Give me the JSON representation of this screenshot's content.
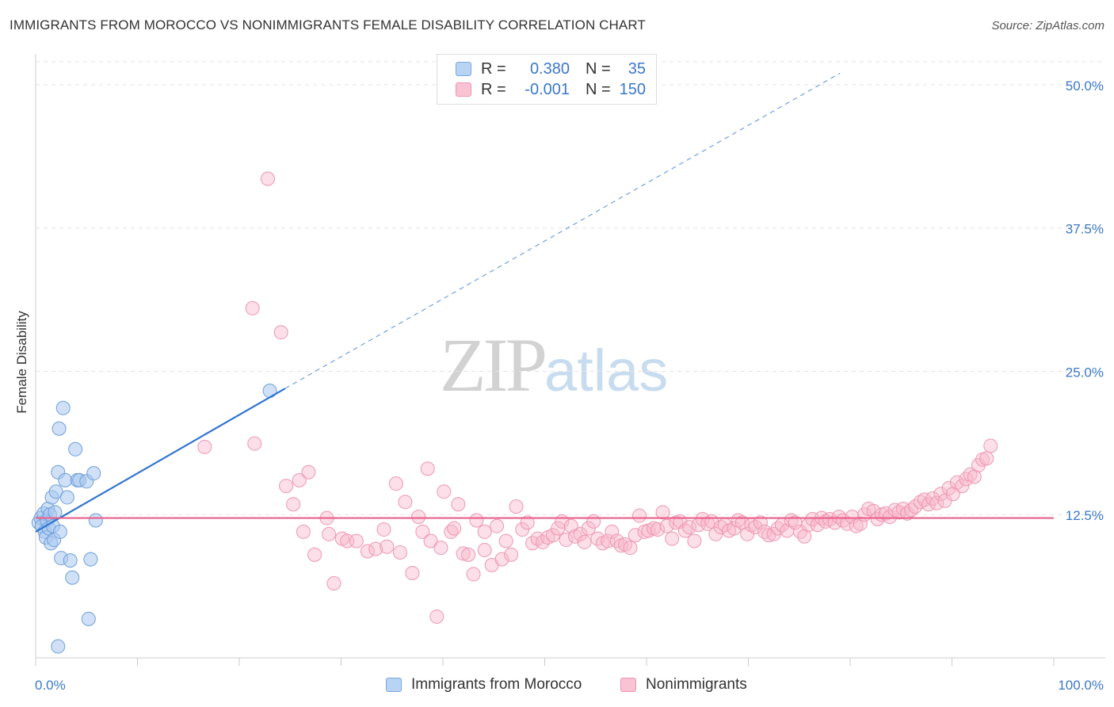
{
  "title": "IMMIGRANTS FROM MOROCCO VS NONIMMIGRANTS FEMALE DISABILITY CORRELATION CHART",
  "source": "Source: ZipAtlas.com",
  "watermark": {
    "zip": "ZIP",
    "atlas": "atlas"
  },
  "legend": {
    "r_label": "R =",
    "n_label": "N =",
    "rows": [
      {
        "r": "0.380",
        "n": "35",
        "fill": "#b8d4f5",
        "stroke": "#7aa6dc"
      },
      {
        "r": "-0.001",
        "n": "150",
        "fill": "#f9c3d4",
        "stroke": "#ef93b0"
      }
    ]
  },
  "bottom_legend": [
    {
      "label": "Immigrants from Morocco",
      "fill": "#b8d4f5",
      "stroke": "#7aa6dc"
    },
    {
      "label": "Nonimmigrants",
      "fill": "#f9c3d4",
      "stroke": "#ef93b0"
    }
  ],
  "chart_data": {
    "type": "scatter",
    "title": "IMMIGRANTS FROM MOROCCO VS NONIMMIGRANTS FEMALE DISABILITY CORRELATION CHART",
    "xlabel": "",
    "ylabel": "Female Disability",
    "xlim": [
      0,
      100
    ],
    "ylim": [
      0,
      52
    ],
    "x_tick_labels": [
      "0.0%",
      "100.0%"
    ],
    "y_ticks": [
      12.5,
      25.0,
      37.5,
      50.0
    ],
    "y_tick_labels": [
      "12.5%",
      "25.0%",
      "37.5%",
      "50.0%"
    ],
    "grid": "horizontal dashed",
    "legend_position": "top-center",
    "colors": {
      "immigrants": "#2f74d0",
      "nonimmigrants": "#e8608c",
      "axis_text": "#3a78c9"
    },
    "series": [
      {
        "name": "Immigrants from Morocco",
        "r": 0.38,
        "n": 35,
        "trend": {
          "x0": 0,
          "y0": 11.0,
          "x1": 24.5,
          "y1": 23.5,
          "dashed_to_x": 79,
          "dashed_to_y": 51
        },
        "points": [
          [
            0.3,
            11.8
          ],
          [
            0.5,
            12.2
          ],
          [
            0.6,
            11.5
          ],
          [
            0.8,
            12.6
          ],
          [
            0.9,
            11.0
          ],
          [
            1.0,
            10.5
          ],
          [
            1.1,
            12.0
          ],
          [
            1.2,
            13.0
          ],
          [
            1.3,
            11.3
          ],
          [
            1.4,
            12.5
          ],
          [
            1.5,
            10.0
          ],
          [
            1.6,
            14.0
          ],
          [
            1.7,
            11.5
          ],
          [
            1.8,
            10.3
          ],
          [
            1.9,
            12.7
          ],
          [
            2.0,
            14.5
          ],
          [
            2.2,
            16.2
          ],
          [
            2.3,
            20.0
          ],
          [
            2.4,
            11.0
          ],
          [
            2.5,
            8.7
          ],
          [
            2.7,
            21.8
          ],
          [
            2.9,
            15.5
          ],
          [
            3.1,
            14.0
          ],
          [
            3.4,
            8.5
          ],
          [
            3.6,
            7.0
          ],
          [
            3.9,
            18.2
          ],
          [
            4.1,
            15.5
          ],
          [
            4.3,
            15.5
          ],
          [
            5.0,
            15.4
          ],
          [
            5.2,
            3.4
          ],
          [
            5.4,
            8.6
          ],
          [
            5.7,
            16.1
          ],
          [
            5.9,
            12.0
          ],
          [
            2.2,
            1.0
          ],
          [
            23.0,
            23.3
          ]
        ]
      },
      {
        "name": "Nonimmigrants",
        "r": -0.001,
        "n": 150,
        "trend": {
          "x0": 0,
          "y0": 12.2,
          "x1": 100,
          "y1": 12.2
        },
        "points": [
          [
            22.8,
            41.8
          ],
          [
            21.3,
            30.5
          ],
          [
            24.1,
            28.4
          ],
          [
            16.6,
            18.4
          ],
          [
            21.5,
            18.7
          ],
          [
            24.6,
            15.0
          ],
          [
            25.9,
            15.5
          ],
          [
            26.8,
            16.2
          ],
          [
            25.3,
            13.4
          ],
          [
            26.3,
            11.0
          ],
          [
            27.4,
            9.0
          ],
          [
            28.6,
            12.2
          ],
          [
            28.8,
            10.8
          ],
          [
            29.3,
            6.5
          ],
          [
            30.1,
            10.4
          ],
          [
            30.6,
            10.2
          ],
          [
            31.5,
            10.2
          ],
          [
            32.6,
            9.3
          ],
          [
            33.4,
            9.5
          ],
          [
            34.2,
            11.2
          ],
          [
            34.5,
            9.7
          ],
          [
            35.4,
            15.2
          ],
          [
            35.8,
            9.2
          ],
          [
            36.3,
            13.6
          ],
          [
            37.0,
            7.4
          ],
          [
            37.6,
            12.3
          ],
          [
            38.0,
            11.0
          ],
          [
            38.5,
            16.5
          ],
          [
            38.8,
            10.2
          ],
          [
            39.4,
            3.6
          ],
          [
            39.8,
            9.6
          ],
          [
            40.1,
            14.5
          ],
          [
            40.8,
            11.0
          ],
          [
            41.1,
            11.3
          ],
          [
            41.5,
            13.4
          ],
          [
            42.0,
            9.1
          ],
          [
            42.5,
            9.0
          ],
          [
            43.0,
            7.3
          ],
          [
            43.3,
            12.0
          ],
          [
            44.1,
            11.0
          ],
          [
            44.1,
            9.4
          ],
          [
            44.8,
            8.1
          ],
          [
            45.3,
            11.5
          ],
          [
            45.8,
            8.6
          ],
          [
            46.2,
            10.2
          ],
          [
            46.7,
            9.0
          ],
          [
            47.2,
            13.2
          ],
          [
            47.8,
            11.2
          ],
          [
            48.3,
            11.8
          ],
          [
            48.8,
            10.0
          ],
          [
            49.3,
            10.4
          ],
          [
            49.8,
            10.1
          ],
          [
            50.3,
            10.5
          ],
          [
            50.8,
            10.7
          ],
          [
            51.3,
            11.3
          ],
          [
            51.7,
            11.9
          ],
          [
            52.1,
            10.3
          ],
          [
            52.6,
            11.5
          ],
          [
            53.0,
            10.6
          ],
          [
            53.5,
            10.8
          ],
          [
            53.9,
            10.1
          ],
          [
            54.3,
            11.3
          ],
          [
            54.8,
            11.9
          ],
          [
            55.2,
            10.4
          ],
          [
            55.7,
            10.0
          ],
          [
            56.2,
            10.2
          ],
          [
            56.6,
            11.0
          ],
          [
            57.1,
            10.2
          ],
          [
            57.5,
            9.8
          ],
          [
            57.9,
            9.9
          ],
          [
            58.4,
            9.6
          ],
          [
            58.9,
            10.7
          ],
          [
            59.3,
            12.4
          ],
          [
            59.8,
            11.0
          ],
          [
            60.2,
            11.1
          ],
          [
            60.7,
            11.3
          ],
          [
            61.1,
            11.2
          ],
          [
            61.6,
            12.7
          ],
          [
            62.0,
            11.5
          ],
          [
            62.5,
            10.4
          ],
          [
            62.9,
            11.8
          ],
          [
            63.3,
            11.9
          ],
          [
            63.8,
            11.1
          ],
          [
            64.2,
            11.4
          ],
          [
            64.7,
            10.2
          ],
          [
            65.1,
            11.6
          ],
          [
            65.5,
            12.1
          ],
          [
            66.0,
            11.7
          ],
          [
            66.4,
            11.9
          ],
          [
            66.8,
            10.8
          ],
          [
            67.3,
            11.4
          ],
          [
            67.7,
            11.6
          ],
          [
            68.1,
            11.1
          ],
          [
            68.6,
            11.3
          ],
          [
            69.0,
            12.0
          ],
          [
            69.4,
            11.8
          ],
          [
            69.9,
            10.8
          ],
          [
            70.3,
            11.6
          ],
          [
            70.7,
            11.4
          ],
          [
            71.2,
            11.8
          ],
          [
            71.6,
            11.0
          ],
          [
            72.0,
            10.7
          ],
          [
            72.5,
            10.8
          ],
          [
            72.9,
            11.3
          ],
          [
            73.3,
            11.6
          ],
          [
            73.8,
            11.1
          ],
          [
            74.2,
            12.0
          ],
          [
            74.6,
            11.8
          ],
          [
            75.1,
            11.0
          ],
          [
            75.5,
            10.6
          ],
          [
            75.9,
            11.6
          ],
          [
            76.3,
            12.1
          ],
          [
            76.8,
            11.6
          ],
          [
            77.2,
            12.2
          ],
          [
            77.6,
            11.9
          ],
          [
            78.0,
            12.1
          ],
          [
            78.5,
            11.8
          ],
          [
            78.9,
            12.3
          ],
          [
            79.3,
            12.0
          ],
          [
            79.7,
            11.7
          ],
          [
            80.2,
            12.3
          ],
          [
            80.6,
            11.5
          ],
          [
            81.0,
            11.7
          ],
          [
            81.4,
            12.5
          ],
          [
            81.8,
            13.0
          ],
          [
            82.3,
            12.8
          ],
          [
            82.7,
            12.1
          ],
          [
            83.1,
            12.5
          ],
          [
            83.5,
            12.6
          ],
          [
            83.9,
            12.3
          ],
          [
            84.4,
            12.9
          ],
          [
            84.8,
            12.7
          ],
          [
            85.2,
            13.0
          ],
          [
            85.6,
            12.6
          ],
          [
            86.0,
            12.9
          ],
          [
            86.4,
            13.2
          ],
          [
            86.9,
            13.6
          ],
          [
            87.3,
            13.8
          ],
          [
            87.7,
            13.4
          ],
          [
            88.1,
            13.9
          ],
          [
            88.5,
            13.5
          ],
          [
            88.9,
            14.3
          ],
          [
            89.3,
            13.7
          ],
          [
            89.7,
            14.8
          ],
          [
            90.1,
            14.3
          ],
          [
            90.5,
            15.3
          ],
          [
            91.0,
            15.0
          ],
          [
            91.4,
            15.6
          ],
          [
            91.8,
            16.0
          ],
          [
            92.2,
            15.8
          ],
          [
            92.6,
            16.8
          ],
          [
            93.0,
            17.3
          ],
          [
            93.4,
            17.4
          ],
          [
            93.8,
            18.5
          ]
        ]
      }
    ]
  }
}
